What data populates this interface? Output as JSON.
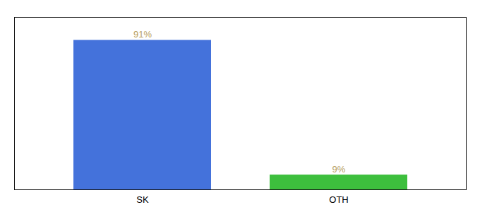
{
  "chart_data": {
    "type": "bar",
    "categories": [
      "SK",
      "OTH"
    ],
    "values": [
      91,
      9
    ],
    "value_labels": [
      "91%",
      "9%"
    ],
    "colors": [
      "#4472db",
      "#3dbf3d"
    ],
    "ylim": [
      0,
      105
    ],
    "data_labels": true,
    "tick_labels": "x",
    "grid": false
  }
}
